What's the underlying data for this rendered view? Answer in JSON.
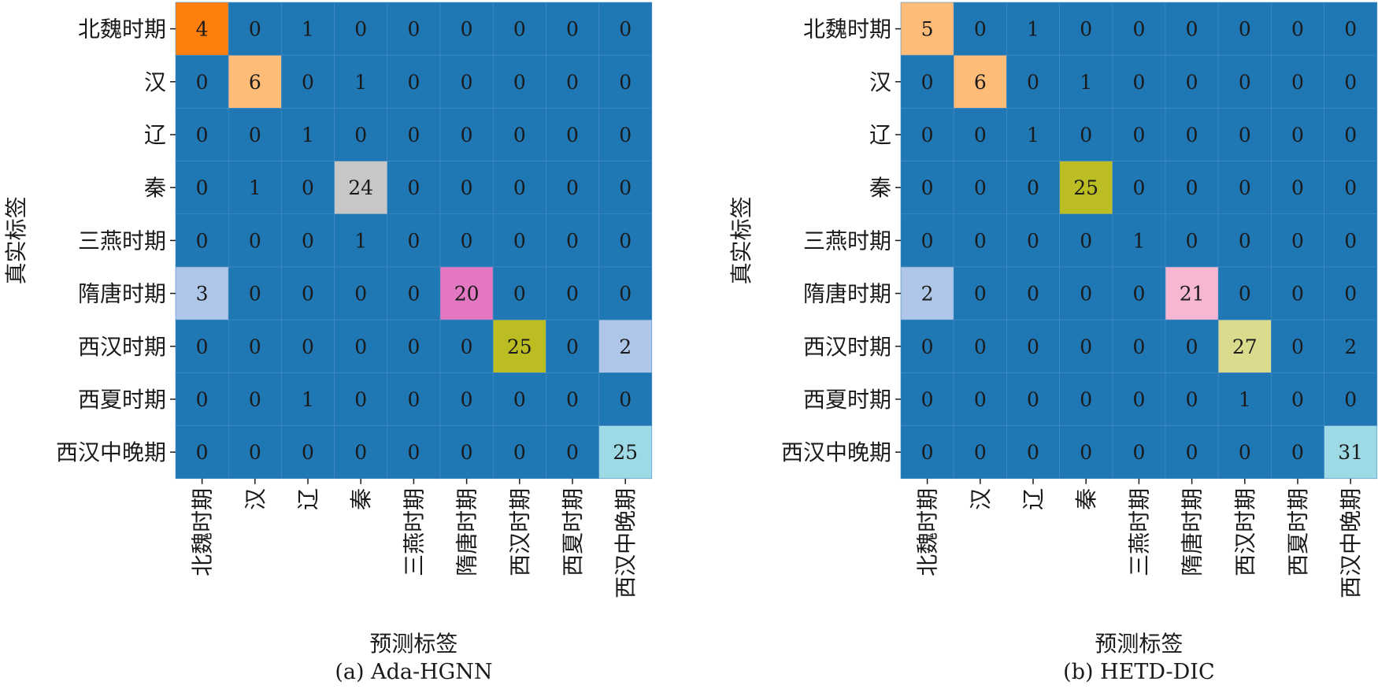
{
  "chart_data": [
    {
      "type": "heatmap",
      "caption": "(a) Ada-HGNN",
      "xlabel": "预测标签",
      "ylabel": "真实标签",
      "row_labels": [
        "北魏时期",
        "汉",
        "辽",
        "秦",
        "三燕时期",
        "隋唐时期",
        "西汉时期",
        "西夏时期",
        "西汉中晚期"
      ],
      "col_labels": [
        "北魏时期",
        "汉",
        "辽",
        "秦",
        "三燕时期",
        "隋唐时期",
        "西汉时期",
        "西夏时期",
        "西汉中晚期"
      ],
      "values": [
        [
          4,
          0,
          1,
          0,
          0,
          0,
          0,
          0,
          0
        ],
        [
          0,
          6,
          0,
          1,
          0,
          0,
          0,
          0,
          0
        ],
        [
          0,
          0,
          1,
          0,
          0,
          0,
          0,
          0,
          0
        ],
        [
          0,
          1,
          0,
          24,
          0,
          0,
          0,
          0,
          0
        ],
        [
          0,
          0,
          0,
          1,
          0,
          0,
          0,
          0,
          0
        ],
        [
          3,
          0,
          0,
          0,
          0,
          20,
          0,
          0,
          0
        ],
        [
          0,
          0,
          0,
          0,
          0,
          0,
          25,
          0,
          2
        ],
        [
          0,
          0,
          1,
          0,
          0,
          0,
          0,
          0,
          0
        ],
        [
          0,
          0,
          0,
          0,
          0,
          0,
          0,
          0,
          25
        ]
      ],
      "highlight_colors": {
        "0,0": "#ff7f0e",
        "1,1": "#ffbb78",
        "3,3": "#c7c7c7",
        "5,0": "#aec7e8",
        "5,5": "#e377c2",
        "6,6": "#bcbd22",
        "6,8": "#aec7e8",
        "8,8": "#9edae5"
      }
    },
    {
      "type": "heatmap",
      "caption": "(b) HETD-DIC",
      "xlabel": "预测标签",
      "ylabel": "真实标签",
      "row_labels": [
        "北魏时期",
        "汉",
        "辽",
        "秦",
        "三燕时期",
        "隋唐时期",
        "西汉时期",
        "西夏时期",
        "西汉中晚期"
      ],
      "col_labels": [
        "北魏时期",
        "汉",
        "辽",
        "秦",
        "三燕时期",
        "隋唐时期",
        "西汉时期",
        "西夏时期",
        "西汉中晚期"
      ],
      "values": [
        [
          5,
          0,
          1,
          0,
          0,
          0,
          0,
          0,
          0
        ],
        [
          0,
          6,
          0,
          1,
          0,
          0,
          0,
          0,
          0
        ],
        [
          0,
          0,
          1,
          0,
          0,
          0,
          0,
          0,
          0
        ],
        [
          0,
          0,
          0,
          25,
          0,
          0,
          0,
          0,
          0
        ],
        [
          0,
          0,
          0,
          0,
          1,
          0,
          0,
          0,
          0
        ],
        [
          2,
          0,
          0,
          0,
          0,
          21,
          0,
          0,
          0
        ],
        [
          0,
          0,
          0,
          0,
          0,
          0,
          27,
          0,
          2
        ],
        [
          0,
          0,
          0,
          0,
          0,
          0,
          1,
          0,
          0
        ],
        [
          0,
          0,
          0,
          0,
          0,
          0,
          0,
          0,
          31
        ]
      ],
      "highlight_colors": {
        "0,0": "#ffbb78",
        "1,1": "#ffbb78",
        "3,3": "#bcbd22",
        "5,0": "#aec7e8",
        "5,5": "#f7b6d2",
        "6,6": "#dbdb8d",
        "8,8": "#9edae5"
      }
    }
  ],
  "colors": {
    "base_cell": "#1f77b4",
    "grid_line": "#4a8fc6",
    "text": "#1a1a1a"
  }
}
